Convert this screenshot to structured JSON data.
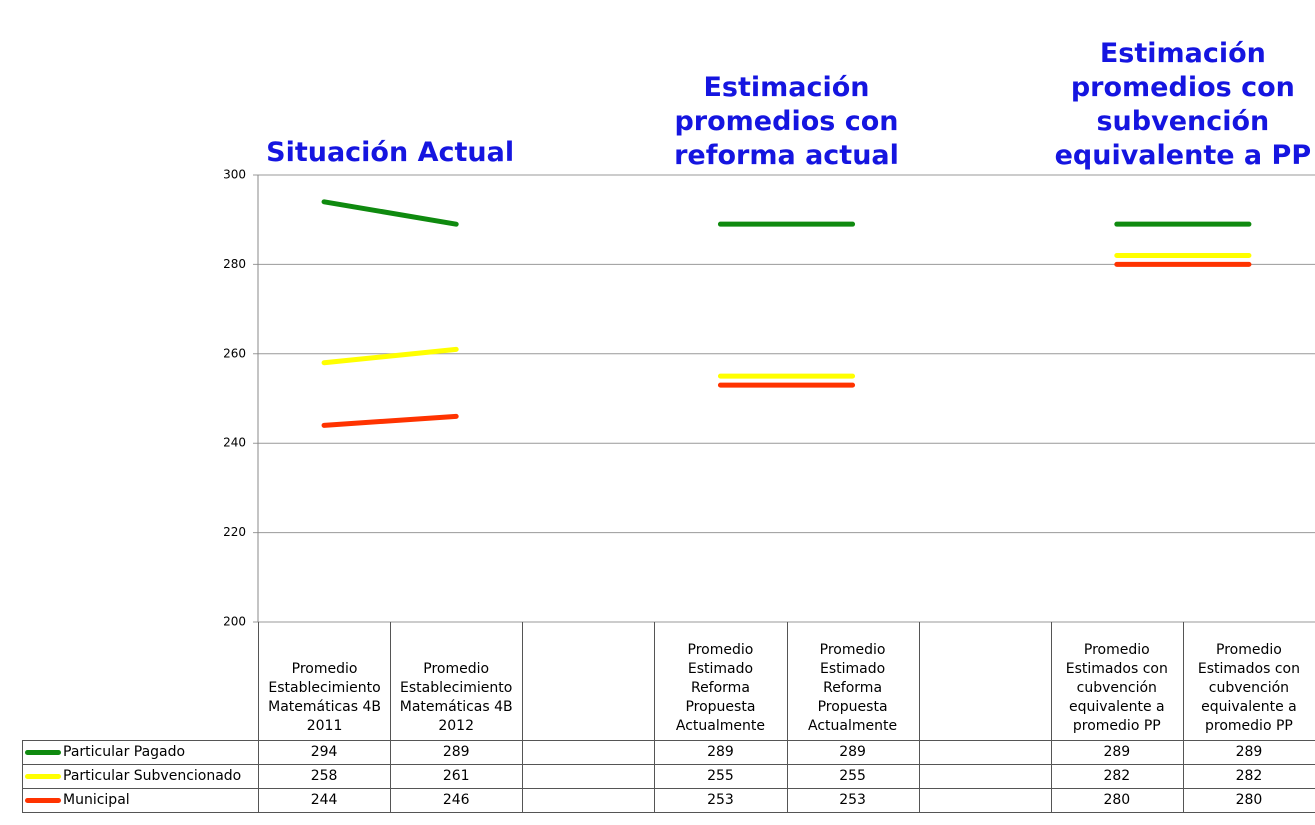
{
  "chart_data": {
    "type": "line",
    "annotations": [
      "Situación Actual",
      "Estimación promedios con reforma actual",
      "Estimación promedios con subvención equivalente a PP"
    ],
    "categories": [
      "Promedio Establecimiento Matemáticas 4B 2011",
      "Promedio Establecimiento Matemáticas 4B 2012",
      null,
      "Promedio Estimado Reforma Propuesta Actualmente",
      "Promedio Estimado Reforma Propuesta Actualmente",
      null,
      "Promedio Estimados con cubvención equivalente a promedio PP",
      "Promedio Estimados con cubvención equivalente a promedio PP"
    ],
    "series": [
      {
        "name": "Particular Pagado",
        "color": "#0f8a0f",
        "values": [
          294,
          289,
          null,
          289,
          289,
          null,
          289,
          289
        ]
      },
      {
        "name": "Particular Subvencionado",
        "color": "#ffff00",
        "values": [
          258,
          261,
          null,
          255,
          255,
          null,
          282,
          282
        ]
      },
      {
        "name": "Municipal",
        "color": "#ff3300",
        "values": [
          244,
          246,
          null,
          253,
          253,
          null,
          280,
          280
        ]
      }
    ],
    "ylim": [
      200,
      300
    ],
    "yticks": [
      200,
      220,
      240,
      260,
      280,
      300
    ],
    "grid": true
  }
}
